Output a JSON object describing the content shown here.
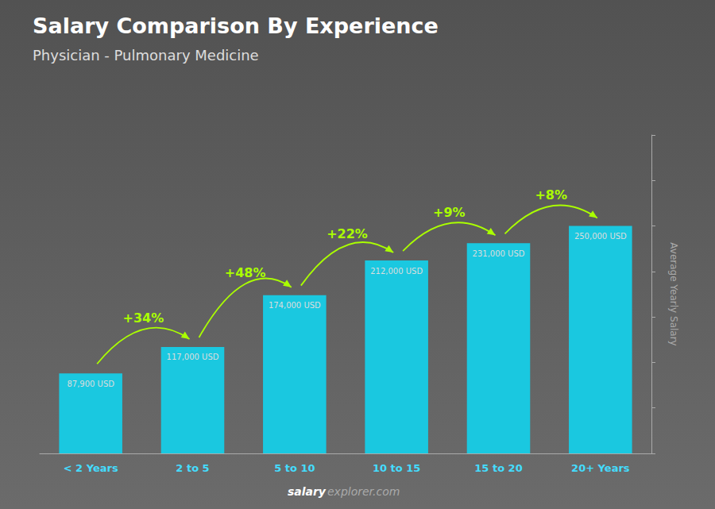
{
  "chart_data": {
    "type": "bar",
    "title": "Salary Comparison By Experience",
    "subtitle": "Physician - Pulmonary Medicine",
    "ylabel": "Average Yearly Salary",
    "categories": [
      "< 2 Years",
      "2 to 5",
      "5 to 10",
      "10 to 15",
      "15 to 20",
      "20+ Years"
    ],
    "values": [
      87900,
      117000,
      174000,
      212000,
      231000,
      250000
    ],
    "value_labels": [
      "87,900 USD",
      "117,000 USD",
      "174,000 USD",
      "212,000 USD",
      "231,000 USD",
      "250,000 USD"
    ],
    "data_labels": true,
    "color": "#1ac8e0",
    "ylim": [
      0,
      350000
    ],
    "yticks": [
      0,
      50000,
      100000,
      150000,
      200000,
      250000,
      300000,
      350000
    ],
    "tick_labels": "x",
    "grid": false,
    "annotations": [
      {
        "text": "+34%",
        "between": [
          "< 2 Years",
          "2 to 5"
        ]
      },
      {
        "text": "+48%",
        "between": [
          "2 to 5",
          "5 to 10"
        ]
      },
      {
        "text": "+22%",
        "between": [
          "5 to 10",
          "10 to 15"
        ]
      },
      {
        "text": "+9%",
        "between": [
          "10 to 15",
          "15 to 20"
        ]
      },
      {
        "text": "+8%",
        "between": [
          "15 to 20",
          "20+ Years"
        ]
      }
    ],
    "watermark": [
      "salary",
      "explorer.com"
    ]
  }
}
